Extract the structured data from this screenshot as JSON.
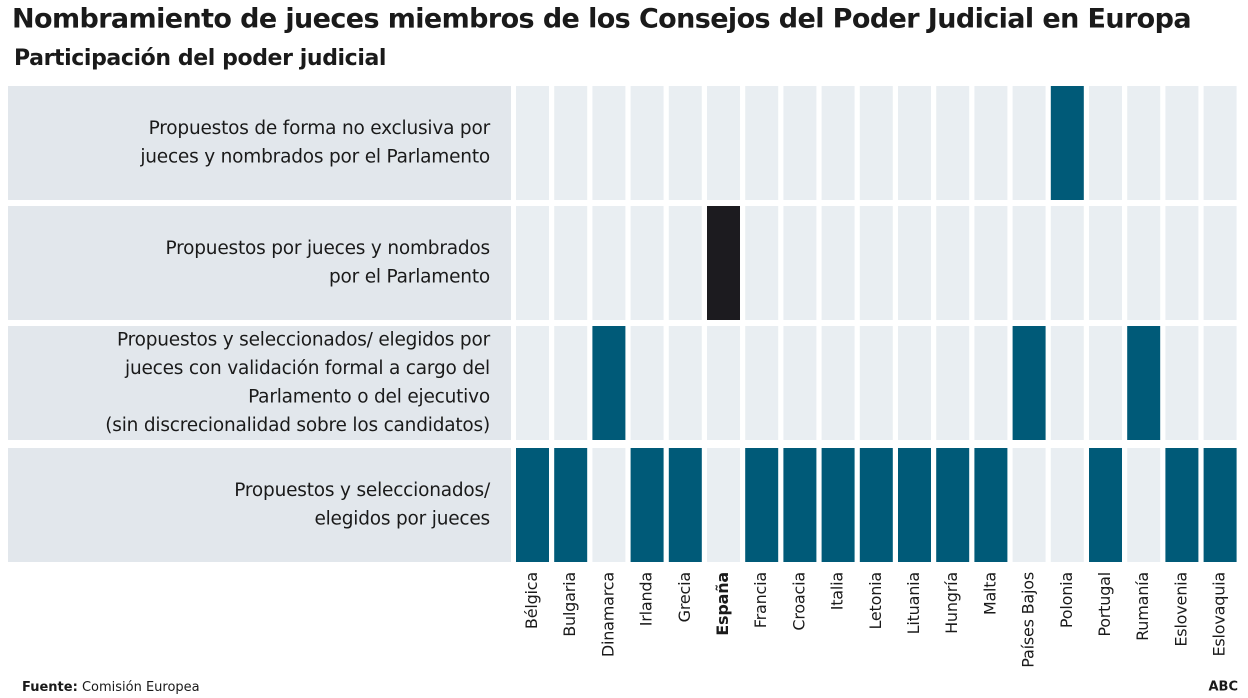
{
  "chart_data": {
    "type": "matrix",
    "title": "Nombramiento de jueces miembros de los Consejos del Poder Judicial en Europa",
    "subtitle": "Participación del poder judicial",
    "countries": [
      {
        "name": "Bélgica",
        "highlight": false
      },
      {
        "name": "Bulgaria",
        "highlight": false
      },
      {
        "name": "Dinamarca",
        "highlight": false
      },
      {
        "name": "Irlanda",
        "highlight": false
      },
      {
        "name": "Grecia",
        "highlight": false
      },
      {
        "name": "España",
        "highlight": true
      },
      {
        "name": "Francia",
        "highlight": false
      },
      {
        "name": "Croacia",
        "highlight": false
      },
      {
        "name": "Italia",
        "highlight": false
      },
      {
        "name": "Letonia",
        "highlight": false
      },
      {
        "name": "Lituania",
        "highlight": false
      },
      {
        "name": "Hungría",
        "highlight": false
      },
      {
        "name": "Malta",
        "highlight": false
      },
      {
        "name": "Países Bajos",
        "highlight": false
      },
      {
        "name": "Polonia",
        "highlight": false
      },
      {
        "name": "Portugal",
        "highlight": false
      },
      {
        "name": "Rumanía",
        "highlight": false
      },
      {
        "name": "Eslovenia",
        "highlight": false
      },
      {
        "name": "Eslovaquia",
        "highlight": false
      }
    ],
    "rows": [
      {
        "lines": [
          "Propuestos de forma no exclusiva por",
          "jueces y nombrados por el Parlamento"
        ],
        "cells": [
          false,
          false,
          false,
          false,
          false,
          false,
          false,
          false,
          false,
          false,
          false,
          false,
          false,
          false,
          true,
          false,
          false,
          false,
          false
        ]
      },
      {
        "lines": [
          "Propuestos por jueces y nombrados",
          "por el Parlamento"
        ],
        "cells": [
          false,
          false,
          false,
          false,
          false,
          true,
          false,
          false,
          false,
          false,
          false,
          false,
          false,
          false,
          false,
          false,
          false,
          false,
          false
        ]
      },
      {
        "lines": [
          "Propuestos y seleccionados/ elegidos por",
          "jueces con validación formal a cargo del",
          "Parlamento o del ejecutivo",
          "(sin discrecionalidad sobre los candidatos)"
        ],
        "cells": [
          false,
          false,
          true,
          false,
          false,
          false,
          false,
          false,
          false,
          false,
          false,
          false,
          false,
          true,
          false,
          false,
          true,
          false,
          false
        ]
      },
      {
        "lines": [
          "Propuestos y seleccionados/",
          "elegidos por jueces"
        ],
        "cells": [
          true,
          true,
          false,
          true,
          true,
          false,
          true,
          true,
          true,
          true,
          true,
          true,
          true,
          false,
          false,
          true,
          false,
          true,
          true
        ]
      }
    ],
    "colors": {
      "fill": "#005a78",
      "highlight": "#1c1b1f",
      "empty": "#e9eef2",
      "label_bg": "#e2e7ec"
    },
    "source_label": "Fuente:",
    "source": "Comisión Europea",
    "brand": "ABC"
  }
}
